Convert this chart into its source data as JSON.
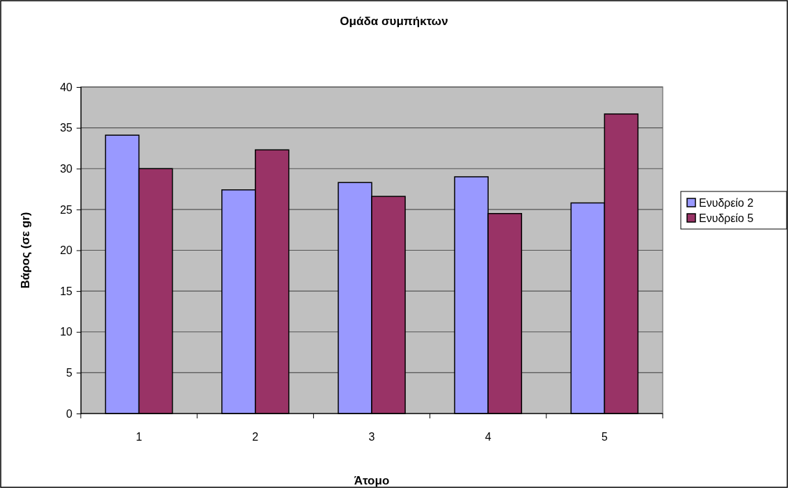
{
  "chart_data": {
    "type": "bar",
    "title": "Ομάδα συμπήκτων",
    "xlabel": "Άτομο",
    "ylabel": "Βάρος (σε gr)",
    "categories": [
      "1",
      "2",
      "3",
      "4",
      "5"
    ],
    "series": [
      {
        "name": "Ενυδρείο 2",
        "color": "#9999ff",
        "values": [
          34.1,
          27.4,
          28.3,
          29.0,
          25.8
        ]
      },
      {
        "name": "Ενυδρείο 5",
        "color": "#993366",
        "values": [
          30.0,
          32.3,
          26.6,
          24.5,
          36.7
        ]
      }
    ],
    "ylim": [
      0,
      40
    ],
    "yticks": [
      0,
      5,
      10,
      15,
      20,
      25,
      30,
      35,
      40
    ],
    "grid": "y",
    "legend": "right"
  }
}
